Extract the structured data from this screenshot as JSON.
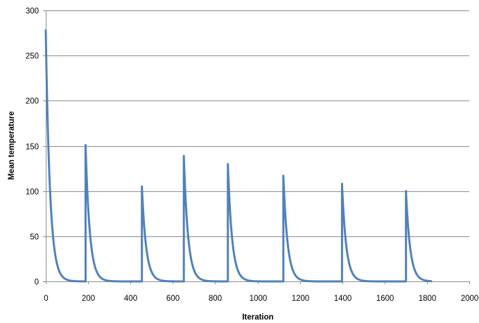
{
  "chart_data": {
    "type": "line",
    "title": "",
    "xlabel": "Iteration",
    "ylabel": "Mean temperature",
    "xlim": [
      0,
      2000
    ],
    "ylim": [
      0,
      300
    ],
    "x_ticks": [
      0,
      200,
      400,
      600,
      800,
      1000,
      1200,
      1400,
      1600,
      1800,
      2000
    ],
    "y_ticks": [
      0,
      50,
      100,
      150,
      200,
      250,
      300
    ],
    "grid": "horizontal",
    "legend": "none",
    "line_color": "#4f81bd",
    "series": [
      {
        "decay_rate_per_iteration": 0.05,
        "restarts": [
          {
            "x": 0,
            "peak": 278,
            "end_x": 180
          },
          {
            "x": 188,
            "peak": 151,
            "end_x": 450
          },
          {
            "x": 454,
            "peak": 105,
            "end_x": 648
          },
          {
            "x": 652,
            "peak": 139,
            "end_x": 856
          },
          {
            "x": 860,
            "peak": 130,
            "end_x": 1118
          },
          {
            "x": 1122,
            "peak": 117,
            "end_x": 1395
          },
          {
            "x": 1399,
            "peak": 108,
            "end_x": 1697
          },
          {
            "x": 1701,
            "peak": 100,
            "end_x": 1820
          }
        ]
      }
    ]
  }
}
